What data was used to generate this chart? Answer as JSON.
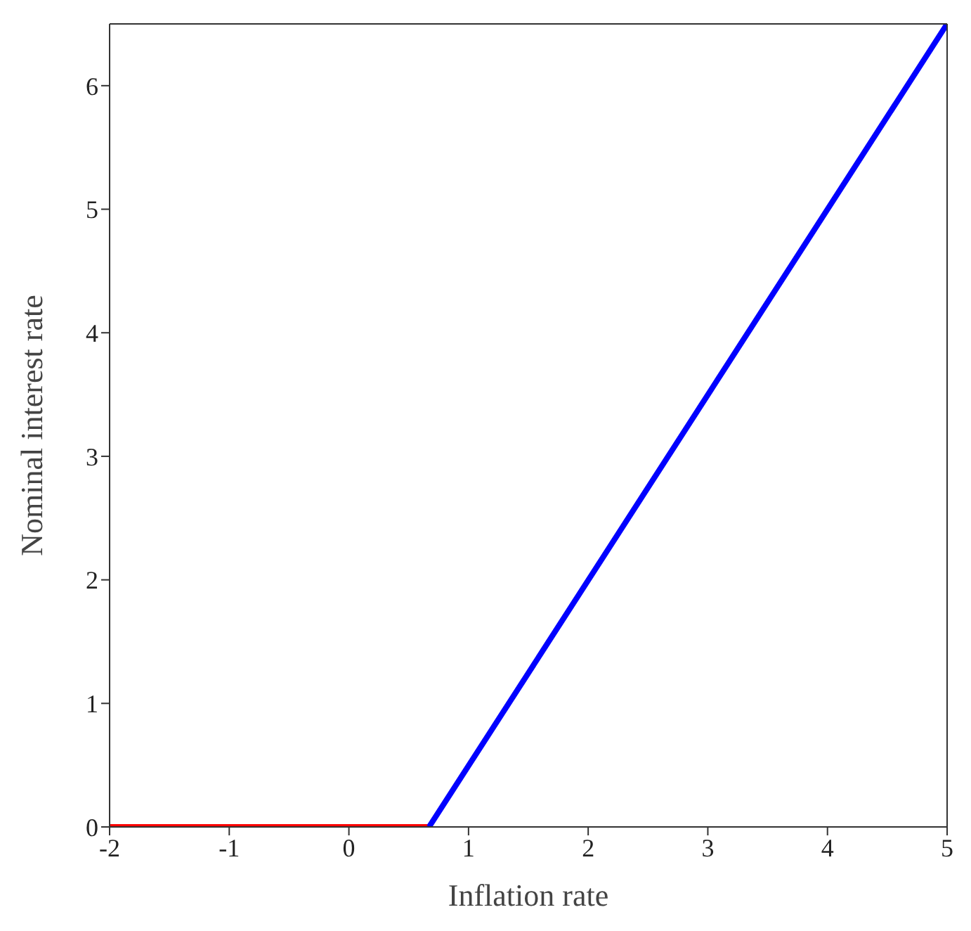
{
  "chart_data": {
    "type": "line",
    "xlabel": "Inflation rate",
    "ylabel": "Nominal interest rate",
    "series": [
      {
        "color": "#ff0000",
        "x": [
          -2,
          0.67
        ],
        "values": [
          0,
          0
        ]
      },
      {
        "color": "#0000ff",
        "x": [
          0.67,
          5
        ],
        "values": [
          0,
          6.5
        ]
      }
    ],
    "xlim": [
      -2,
      5
    ],
    "xticks": [
      -2,
      -1,
      0,
      1,
      2,
      3,
      4,
      5
    ],
    "ylim": [
      0,
      6.5
    ],
    "yticks": [
      0,
      1,
      2,
      3,
      4,
      5,
      6
    ],
    "marker": "none",
    "line_style": "solid"
  }
}
